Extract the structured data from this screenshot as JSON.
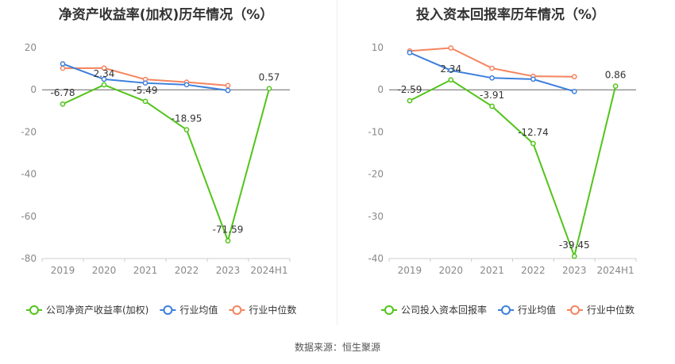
{
  "chart_data": [
    {
      "type": "line",
      "title": "净资产收益率(加权)历年情况（%）",
      "categories": [
        "2019",
        "2020",
        "2021",
        "2022",
        "2023",
        "2024H1"
      ],
      "ylim": [
        -80,
        20
      ],
      "yticks": [
        20,
        0,
        -20,
        -40,
        -60,
        -80
      ],
      "grid": false,
      "legend_position": "bottom",
      "series": [
        {
          "name": "公司净资产收益率(加权)",
          "color": "#52c41a",
          "values": [
            -6.78,
            2.34,
            -5.49,
            -18.95,
            -71.59,
            0.57
          ],
          "labels": [
            "-6.78",
            "2.34",
            "-5.49",
            "-18.95",
            "-71.59",
            "0.57"
          ]
        },
        {
          "name": "行业均值",
          "color": "#3d7fdc",
          "values": [
            12.3,
            5.0,
            3.2,
            2.4,
            -0.3,
            null
          ]
        },
        {
          "name": "行业中位数",
          "color": "#f4845f",
          "values": [
            10.2,
            10.3,
            4.9,
            3.6,
            2.0,
            null
          ]
        }
      ]
    },
    {
      "type": "line",
      "title": "投入资本回报率历年情况（%）",
      "categories": [
        "2019",
        "2020",
        "2021",
        "2022",
        "2023",
        "2024H1"
      ],
      "ylim": [
        -40,
        10
      ],
      "yticks": [
        10,
        0,
        -10,
        -20,
        -30,
        -40
      ],
      "grid": false,
      "legend_position": "bottom",
      "series": [
        {
          "name": "公司投入资本回报率",
          "color": "#52c41a",
          "values": [
            -2.59,
            2.34,
            -3.91,
            -12.74,
            -39.45,
            0.86
          ],
          "labels": [
            "-2.59",
            "2.34",
            "-3.91",
            "-12.74",
            "-39.45",
            "0.86"
          ]
        },
        {
          "name": "行业均值",
          "color": "#3d7fdc",
          "values": [
            8.8,
            4.6,
            2.8,
            2.5,
            -0.4,
            null
          ]
        },
        {
          "name": "行业中位数",
          "color": "#f4845f",
          "values": [
            9.2,
            9.9,
            5.1,
            3.2,
            3.1,
            null
          ]
        }
      ]
    }
  ],
  "footer": {
    "source": "数据来源：恒生聚源"
  }
}
